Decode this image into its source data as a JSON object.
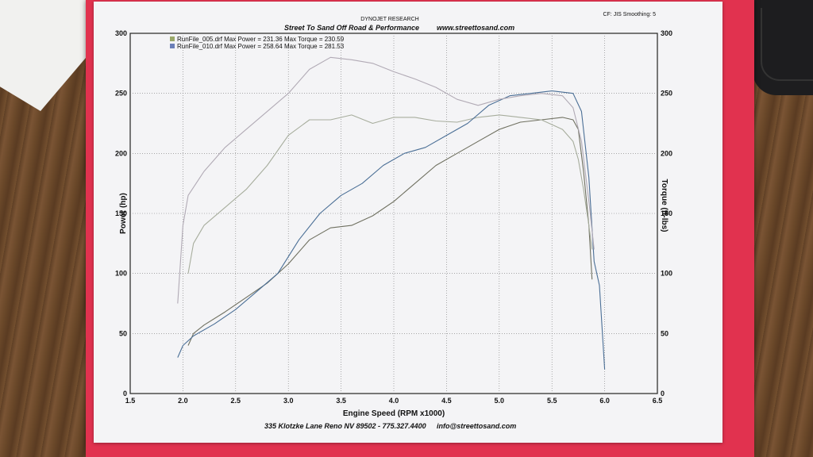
{
  "header": {
    "org": "DYNOJET RESEARCH",
    "settings": "CF: JIS Smoothing: 5",
    "shop_title": "Street To Sand Off Road & Performance",
    "website": "www.streettosand.com"
  },
  "footer": {
    "address": "335 Klotzke Lane Reno NV 89502 - 775.327.4400",
    "email": "info@streettosand.com"
  },
  "chart_data": {
    "type": "line",
    "title": "",
    "xlabel": "Engine Speed (RPM x1000)",
    "ylabel": "Power (hp)",
    "y2label": "Torque (ft-lbs)",
    "xlim": [
      1.5,
      6.5
    ],
    "ylim": [
      0,
      300
    ],
    "y2lim": [
      0,
      300
    ],
    "xticks": [
      "1.5",
      "2.0",
      "2.5",
      "3.0",
      "3.5",
      "4.0",
      "4.5",
      "5.0",
      "5.5",
      "6.0",
      "6.5"
    ],
    "yticks": [
      "0",
      "50",
      "100",
      "150",
      "200",
      "250",
      "300"
    ],
    "y2ticks": [
      "0",
      "50",
      "100",
      "150",
      "200",
      "250",
      "300"
    ],
    "grid": true,
    "legend": [
      {
        "text": "RunFile_005.drf Max Power = 231.36     Max Torque = 230.59",
        "color": "#9aa86a"
      },
      {
        "text": "RunFile_010.drf Max Power = 258.64     Max Torque = 281.53",
        "color": "#6b7fb8"
      }
    ],
    "series": [
      {
        "name": "RunFile_005.drf",
        "metric": "Power (hp)",
        "color": "#6f7060",
        "x": [
          2.05,
          2.1,
          2.2,
          2.4,
          2.6,
          2.8,
          3.0,
          3.2,
          3.4,
          3.6,
          3.8,
          4.0,
          4.2,
          4.4,
          4.6,
          4.8,
          5.0,
          5.2,
          5.4,
          5.6,
          5.7,
          5.75,
          5.8,
          5.85,
          5.88
        ],
        "y": [
          40,
          50,
          57,
          68,
          80,
          92,
          108,
          128,
          138,
          140,
          148,
          160,
          175,
          190,
          200,
          210,
          220,
          226,
          228,
          230,
          228,
          220,
          185,
          140,
          95
        ]
      },
      {
        "name": "RunFile_005.drf",
        "metric": "Torque (ft-lbs)",
        "color": "#a7ad9d",
        "x": [
          2.05,
          2.1,
          2.2,
          2.4,
          2.6,
          2.8,
          3.0,
          3.2,
          3.4,
          3.6,
          3.8,
          4.0,
          4.2,
          4.4,
          4.6,
          4.8,
          5.0,
          5.2,
          5.4,
          5.6,
          5.7,
          5.75,
          5.8,
          5.85,
          5.88
        ],
        "y": [
          100,
          125,
          140,
          155,
          170,
          190,
          215,
          228,
          228,
          232,
          225,
          230,
          230,
          227,
          226,
          230,
          232,
          230,
          228,
          220,
          210,
          195,
          170,
          140,
          120
        ]
      },
      {
        "name": "RunFile_010.drf",
        "metric": "Power (hp)",
        "color": "#4b6f96",
        "x": [
          1.95,
          2.0,
          2.1,
          2.3,
          2.5,
          2.7,
          2.9,
          3.1,
          3.3,
          3.5,
          3.7,
          3.9,
          4.1,
          4.3,
          4.5,
          4.7,
          4.9,
          5.1,
          5.3,
          5.5,
          5.7,
          5.78,
          5.85,
          5.9,
          5.95,
          6.0
        ],
        "y": [
          30,
          40,
          48,
          58,
          70,
          85,
          100,
          128,
          150,
          165,
          175,
          190,
          200,
          205,
          215,
          225,
          240,
          248,
          250,
          252,
          250,
          235,
          180,
          110,
          90,
          20
        ]
      },
      {
        "name": "RunFile_010.drf",
        "metric": "Torque (ft-lbs)",
        "color": "#b1aab5",
        "x": [
          1.95,
          2.0,
          2.05,
          2.2,
          2.4,
          2.6,
          2.8,
          3.0,
          3.2,
          3.4,
          3.6,
          3.8,
          4.0,
          4.2,
          4.4,
          4.6,
          4.8,
          5.0,
          5.2,
          5.4,
          5.6,
          5.7,
          5.78,
          5.85,
          5.9
        ],
        "y": [
          75,
          140,
          165,
          185,
          205,
          220,
          235,
          250,
          270,
          280,
          278,
          275,
          268,
          262,
          255,
          245,
          240,
          245,
          248,
          250,
          248,
          238,
          210,
          160,
          120
        ]
      }
    ]
  }
}
